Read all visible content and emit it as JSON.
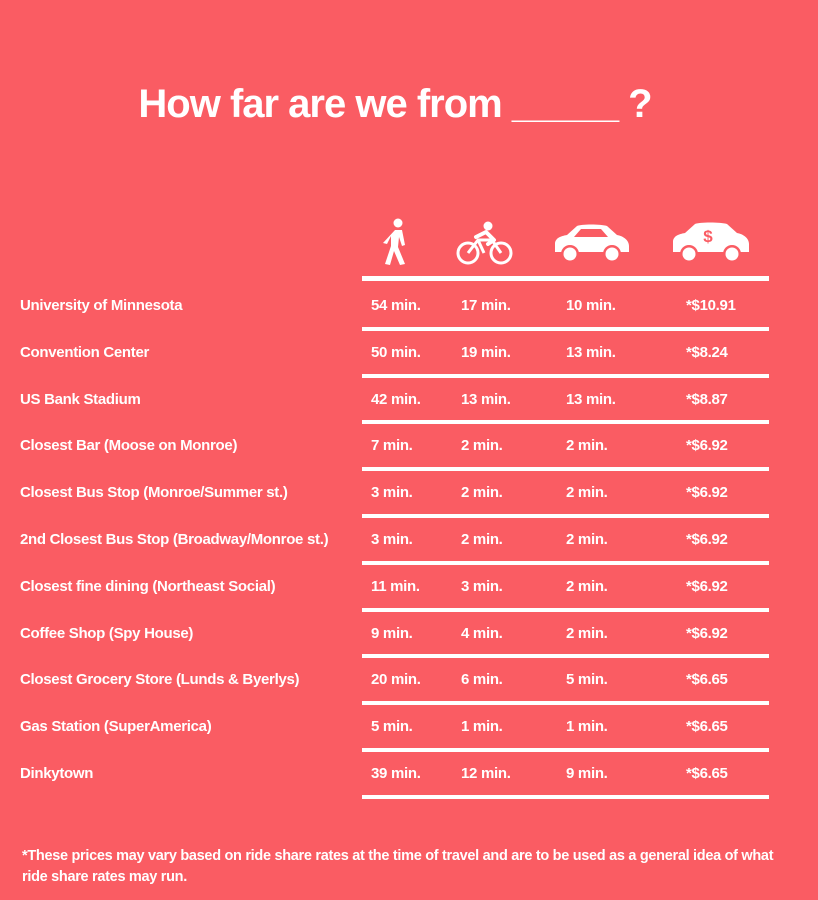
{
  "title": "How far are we from _____ ?",
  "columns": [
    {
      "icon": "walking-person-icon"
    },
    {
      "icon": "bicycle-icon"
    },
    {
      "icon": "car-icon"
    },
    {
      "icon": "rideshare-car-dollar-icon",
      "symbol": "$"
    }
  ],
  "rows": [
    {
      "place": "University of Minnesota",
      "walk": "54 min.",
      "bike": "17 min.",
      "car": "10 min.",
      "fare": "*$10.91"
    },
    {
      "place": "Convention Center",
      "walk": "50 min.",
      "bike": "19 min.",
      "car": "13 min.",
      "fare": "*$8.24"
    },
    {
      "place": "US Bank Stadium",
      "walk": "42 min.",
      "bike": "13 min.",
      "car": "13 min.",
      "fare": "*$8.87"
    },
    {
      "place": "Closest Bar (Moose on Monroe)",
      "walk": "7 min.",
      "bike": "2 min.",
      "car": "2 min.",
      "fare": "*$6.92"
    },
    {
      "place": "Closest Bus Stop (Monroe/Summer st.)",
      "walk": "3 min.",
      "bike": "2 min.",
      "car": "2 min.",
      "fare": "*$6.92"
    },
    {
      "place": "2nd Closest Bus Stop (Broadway/Monroe st.)",
      "walk": "3 min.",
      "bike": "2 min.",
      "car": "2 min.",
      "fare": "*$6.92"
    },
    {
      "place": "Closest fine dining (Northeast Social)",
      "walk": "11 min.",
      "bike": "3 min.",
      "car": "2 min.",
      "fare": "*$6.92"
    },
    {
      "place": "Coffee Shop (Spy House)",
      "walk": "9 min.",
      "bike": "4 min.",
      "car": "2 min.",
      "fare": "*$6.92"
    },
    {
      "place": "Closest Grocery Store (Lunds & Byerlys)",
      "walk": "20 min.",
      "bike": "6 min.",
      "car": "5 min.",
      "fare": "*$6.65"
    },
    {
      "place": "Gas Station (SuperAmerica)",
      "walk": "5 min.",
      "bike": "1 min.",
      "car": "1 min.",
      "fare": "*$6.65"
    },
    {
      "place": "Dinkytown",
      "walk": "39 min.",
      "bike": "12 min.",
      "car": "9 min.",
      "fare": "*$6.65"
    }
  ],
  "footnote": "*These prices may vary based on ride share rates at the time of travel and are to be used as a general idea of what ride share rates may run.",
  "colors": {
    "background": "#fa5c63",
    "foreground": "#ffffff"
  }
}
